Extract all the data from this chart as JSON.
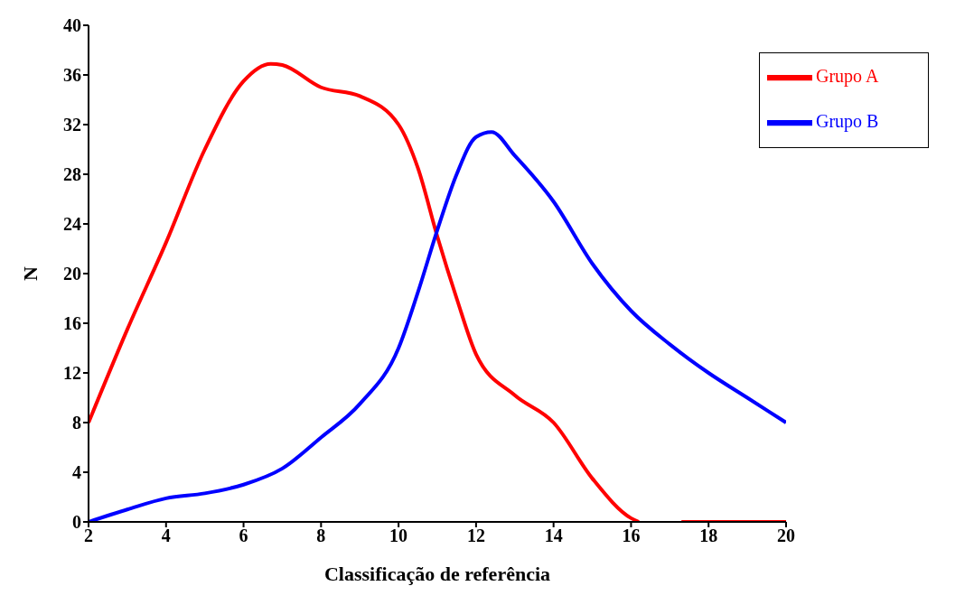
{
  "chart_data": {
    "type": "line",
    "xlabel": "Classificação de referência",
    "ylabel": "N",
    "xlim": [
      2,
      20
    ],
    "xticks": [
      2,
      4,
      6,
      8,
      10,
      12,
      14,
      16,
      18,
      20
    ],
    "ylim": [
      0,
      40
    ],
    "yticks": [
      0,
      4,
      8,
      12,
      16,
      20,
      24,
      28,
      32,
      36,
      40
    ],
    "grid": false,
    "legend": "top right",
    "marker": "none",
    "line_style": "solid",
    "series": [
      {
        "name": "Grupo A",
        "color": "#ff0000",
        "x": [
          2,
          3,
          4,
          5,
          6,
          6.7,
          7,
          8,
          9,
          10,
          10.5,
          11,
          11.5,
          12,
          13,
          14,
          15,
          16,
          16.2,
          16.7,
          17.3,
          18,
          19,
          20
        ],
        "values": [
          8,
          15.5,
          22.5,
          30,
          35.5,
          36.9,
          36.8,
          35,
          34.3,
          32,
          28.5,
          23,
          18,
          13.5,
          10.2,
          8,
          3.5,
          0.3,
          0,
          null,
          0,
          0,
          0,
          0
        ]
      },
      {
        "name": "Grupo B",
        "color": "#0000ff",
        "x": [
          2,
          3,
          4,
          5,
          6,
          7,
          8,
          9,
          10,
          10.5,
          11,
          11.5,
          12,
          12.4,
          13,
          14,
          15,
          16,
          17,
          18,
          19,
          20
        ],
        "values": [
          0,
          1,
          1.9,
          2.3,
          3,
          4.3,
          6.8,
          9.5,
          14,
          18.5,
          23.5,
          28,
          31,
          31.4,
          29.5,
          25.8,
          20.8,
          17,
          14.3,
          12,
          10,
          8
        ]
      }
    ]
  }
}
